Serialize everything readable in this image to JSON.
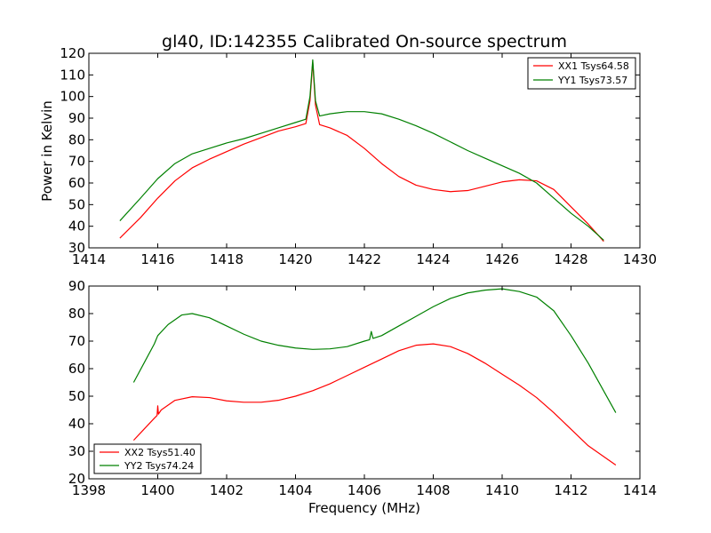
{
  "figure": {
    "title": "gl40, ID:142355 Calibrated On-source spectrum",
    "xlabel": "Frequency (MHz)",
    "ylabel": "Power in Kelvin"
  },
  "colors": {
    "red": "#ff0000",
    "green": "#008000"
  },
  "chart_data": [
    {
      "type": "line",
      "xlim": [
        1414,
        1430
      ],
      "ylim": [
        30,
        120
      ],
      "xticks": [
        1414,
        1416,
        1418,
        1420,
        1422,
        1424,
        1426,
        1428,
        1430
      ],
      "yticks": [
        30,
        40,
        50,
        60,
        70,
        80,
        90,
        100,
        110,
        120
      ],
      "legend_position": "top-right",
      "series": [
        {
          "name": "XX1 Tsys64.58",
          "color": "red",
          "x": [
            1414.9,
            1415.5,
            1416,
            1416.5,
            1417,
            1417.5,
            1418,
            1418.5,
            1419,
            1419.5,
            1420,
            1420.3,
            1420.42,
            1420.5,
            1420.58,
            1420.7,
            1421,
            1421.5,
            1422,
            1422.5,
            1423,
            1423.5,
            1424,
            1424.5,
            1425,
            1425.5,
            1426,
            1426.5,
            1427,
            1427.5,
            1428,
            1428.5,
            1428.95
          ],
          "values": [
            34.5,
            44,
            53,
            61,
            67,
            71,
            74.5,
            78,
            81,
            84,
            86,
            87.5,
            98,
            116,
            96,
            87,
            85.5,
            82,
            76,
            69,
            63,
            59,
            57,
            56,
            56.5,
            58.5,
            60.5,
            61.5,
            61,
            57,
            49,
            41,
            33
          ]
        },
        {
          "name": "YY1 Tsys73.57",
          "color": "green",
          "x": [
            1414.9,
            1415.5,
            1416,
            1416.5,
            1417,
            1417.5,
            1418,
            1418.5,
            1419,
            1419.5,
            1420,
            1420.3,
            1420.42,
            1420.5,
            1420.58,
            1420.7,
            1421,
            1421.5,
            1422,
            1422.5,
            1423,
            1423.5,
            1424,
            1424.5,
            1425,
            1425.5,
            1426,
            1426.5,
            1427,
            1427.5,
            1428,
            1428.5,
            1428.95
          ],
          "values": [
            42.5,
            53,
            62,
            69,
            73.5,
            76,
            78.5,
            80.5,
            83,
            85.5,
            88,
            89.5,
            100,
            117,
            98,
            91,
            92,
            93,
            93,
            92,
            89.5,
            86.5,
            83,
            79,
            75,
            71.5,
            68,
            64.5,
            60,
            53,
            46,
            40,
            33.5
          ]
        }
      ]
    },
    {
      "type": "line",
      "xlim": [
        1398,
        1414
      ],
      "ylim": [
        20,
        90
      ],
      "xticks": [
        1398,
        1400,
        1402,
        1404,
        1406,
        1408,
        1410,
        1412,
        1414
      ],
      "yticks": [
        20,
        30,
        40,
        50,
        60,
        70,
        80,
        90
      ],
      "legend_position": "bottom-left",
      "series": [
        {
          "name": "XX2 Tsys51.40",
          "color": "red",
          "x": [
            1399.3,
            1399.6,
            1399.9,
            1399.98,
            1400.0,
            1400.02,
            1400.1,
            1400.5,
            1401,
            1401.5,
            1402,
            1402.5,
            1403,
            1403.5,
            1404,
            1404.5,
            1405,
            1405.5,
            1406,
            1406.5,
            1407,
            1407.5,
            1408,
            1408.5,
            1409,
            1409.5,
            1410,
            1410.5,
            1411,
            1411.5,
            1412,
            1412.5,
            1413.3
          ],
          "values": [
            34,
            38,
            42,
            43,
            46.5,
            43.5,
            45,
            48.5,
            49.8,
            49.5,
            48.3,
            47.8,
            47.8,
            48.5,
            50,
            52,
            54.5,
            57.5,
            60.5,
            63.5,
            66.5,
            68.5,
            69,
            68,
            65.5,
            62,
            58,
            54,
            49.5,
            44,
            38,
            32,
            25
          ]
        },
        {
          "name": "YY2 Tsys74.24",
          "color": "green",
          "x": [
            1399.3,
            1399.6,
            1399.9,
            1400.0,
            1400.3,
            1400.7,
            1401,
            1401.5,
            1402,
            1402.5,
            1403,
            1403.5,
            1404,
            1404.5,
            1405,
            1405.5,
            1406,
            1406.15,
            1406.2,
            1406.25,
            1406.5,
            1407,
            1407.5,
            1408,
            1408.5,
            1409,
            1409.5,
            1410,
            1410.5,
            1411,
            1411.5,
            1412,
            1412.5,
            1413.3
          ],
          "values": [
            55,
            62,
            69,
            72,
            76,
            79.5,
            80,
            78.5,
            75.5,
            72.5,
            70,
            68.5,
            67.5,
            67,
            67.2,
            68,
            70,
            70.5,
            73.5,
            71,
            72,
            75.5,
            79,
            82.5,
            85.5,
            87.5,
            88.5,
            89,
            88,
            86,
            81,
            72,
            62,
            44
          ]
        }
      ]
    }
  ]
}
